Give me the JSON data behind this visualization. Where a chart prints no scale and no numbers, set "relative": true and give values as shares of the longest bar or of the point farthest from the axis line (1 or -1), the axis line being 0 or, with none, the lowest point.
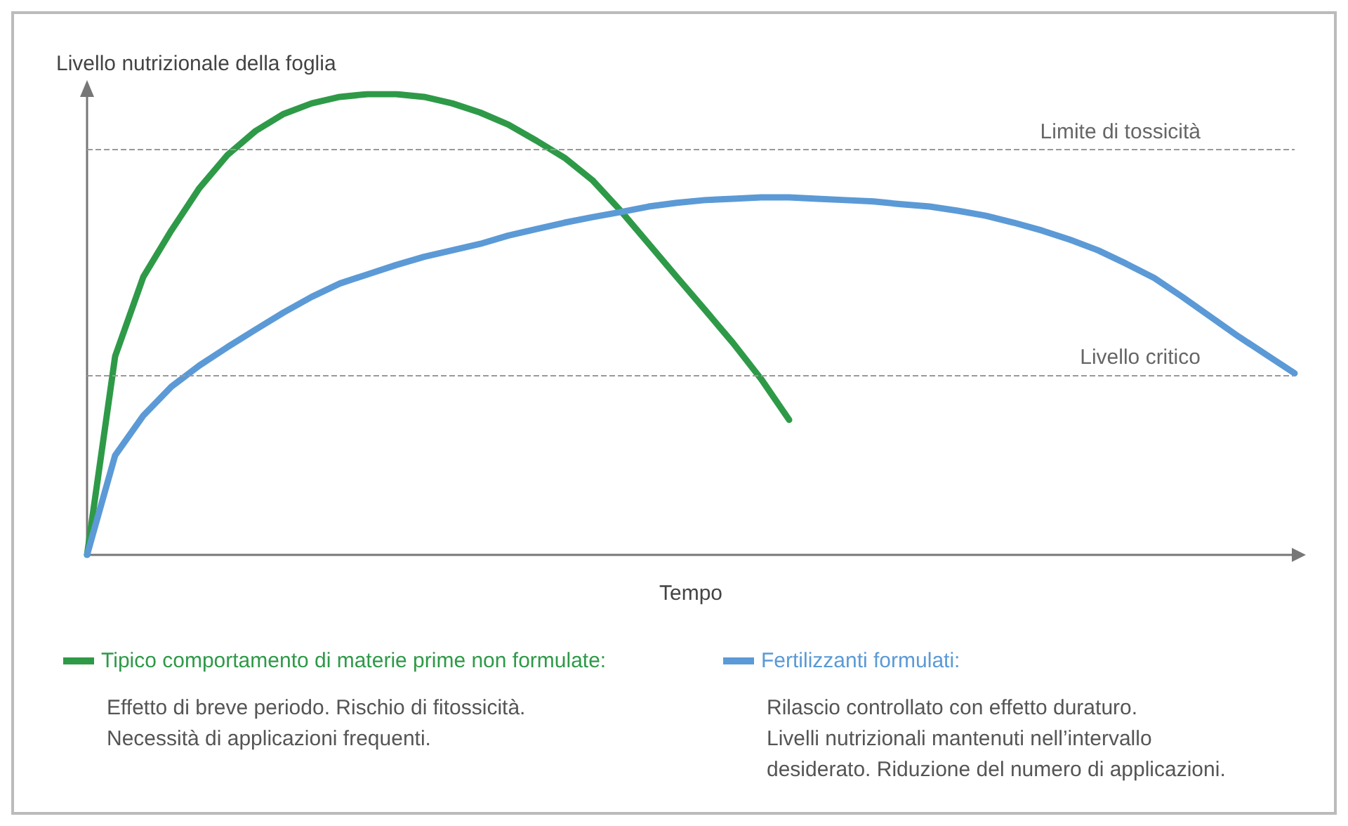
{
  "chart_data": {
    "type": "line",
    "relative": true,
    "xlabel": "Tempo",
    "ylabel": "Livello nutrizionale della foglia",
    "grid": false,
    "legend": "bottom",
    "line_style": "solid",
    "categories": [
      null,
      null,
      null,
      null,
      null,
      null,
      null,
      null,
      null,
      null,
      null,
      null,
      null,
      null,
      null,
      null,
      null,
      null,
      null,
      null,
      null,
      null,
      null,
      null,
      null,
      null,
      null,
      null,
      null,
      null,
      null,
      null,
      null,
      null,
      null,
      null,
      null,
      null,
      null,
      null,
      null,
      null,
      null,
      null
    ],
    "series": [
      {
        "name": "Tipico comportamento di materie prime non formulate:",
        "color": "#2e9a48",
        "values": [
          0,
          0.431,
          0.603,
          0.704,
          0.796,
          0.868,
          0.92,
          0.957,
          0.98,
          0.994,
          1,
          1,
          0.994,
          0.98,
          0.96,
          0.934,
          0.899,
          0.862,
          0.813,
          0.747,
          0.675,
          0.603,
          0.532,
          0.46,
          0.382,
          0.293,
          null,
          null,
          null,
          null,
          null,
          null,
          null,
          null,
          null,
          null,
          null,
          null,
          null,
          null,
          null,
          null,
          null,
          null
        ]
      },
      {
        "name": "Fertilizzanti formulati:",
        "color": "#5b9ad6",
        "values": [
          0,
          0.216,
          0.302,
          0.365,
          0.411,
          0.451,
          0.489,
          0.526,
          0.56,
          0.589,
          0.609,
          0.629,
          0.647,
          0.661,
          0.675,
          0.693,
          0.707,
          0.721,
          0.733,
          0.744,
          0.756,
          0.764,
          0.77,
          0.773,
          0.776,
          0.776,
          0.773,
          0.77,
          0.767,
          0.761,
          0.756,
          0.747,
          0.736,
          0.721,
          0.704,
          0.684,
          0.661,
          0.632,
          0.601,
          0.56,
          0.517,
          0.474,
          0.434,
          0.394
        ]
      }
    ],
    "ref_lines": [
      {
        "axis": "y",
        "value": 0.879,
        "label": "Limite di tossicità",
        "color": "#999999",
        "line_style": "dashed"
      },
      {
        "axis": "y",
        "value": 0.391,
        "label": "Livello critico",
        "color": "#999999",
        "line_style": "dashed"
      }
    ],
    "annotations": [
      "Effetto di breve periodo. Rischio di fitossicità.\nNecessità di applicazioni frequenti.",
      "Rilascio controllato con effetto duraturo.\nLivelli nutrizionali mantenuti nell’intervallo\ndesiderato. Riduzione del numero di applicazioni."
    ]
  }
}
